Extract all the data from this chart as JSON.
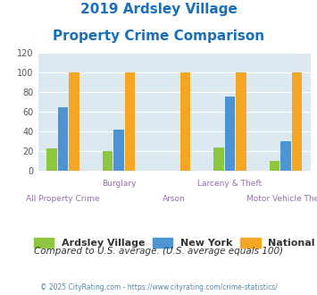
{
  "title_line1": "2019 Ardsley Village",
  "title_line2": "Property Crime Comparison",
  "title_color": "#1a6fba",
  "group_labels_top": [
    "",
    "Burglary",
    "",
    "Larceny & Theft",
    ""
  ],
  "group_labels_bot": [
    "All Property Crime",
    "",
    "Arson",
    "",
    "Motor Vehicle Theft"
  ],
  "ardsley_values": [
    23,
    20,
    0,
    24,
    10
  ],
  "newyork_values": [
    65,
    42,
    0,
    76,
    30
  ],
  "national_values": [
    100,
    100,
    100,
    100,
    100
  ],
  "ardsley_color": "#8dc63f",
  "newyork_color": "#4d94d5",
  "national_color": "#f5a623",
  "bg_color": "#dce9f0",
  "ylim": [
    0,
    120
  ],
  "yticks": [
    0,
    20,
    40,
    60,
    80,
    100,
    120
  ],
  "legend_labels": [
    "Ardsley Village",
    "New York",
    "National"
  ],
  "note_text": "Compared to U.S. average. (U.S. average equals 100)",
  "note_color": "#333333",
  "footer_text": "© 2025 CityRating.com - https://www.cityrating.com/crime-statistics/",
  "footer_color": "#5588aa",
  "label_top_color": "#9370a8",
  "label_bot_color": "#9370a8",
  "grid_color": "#ffffff"
}
